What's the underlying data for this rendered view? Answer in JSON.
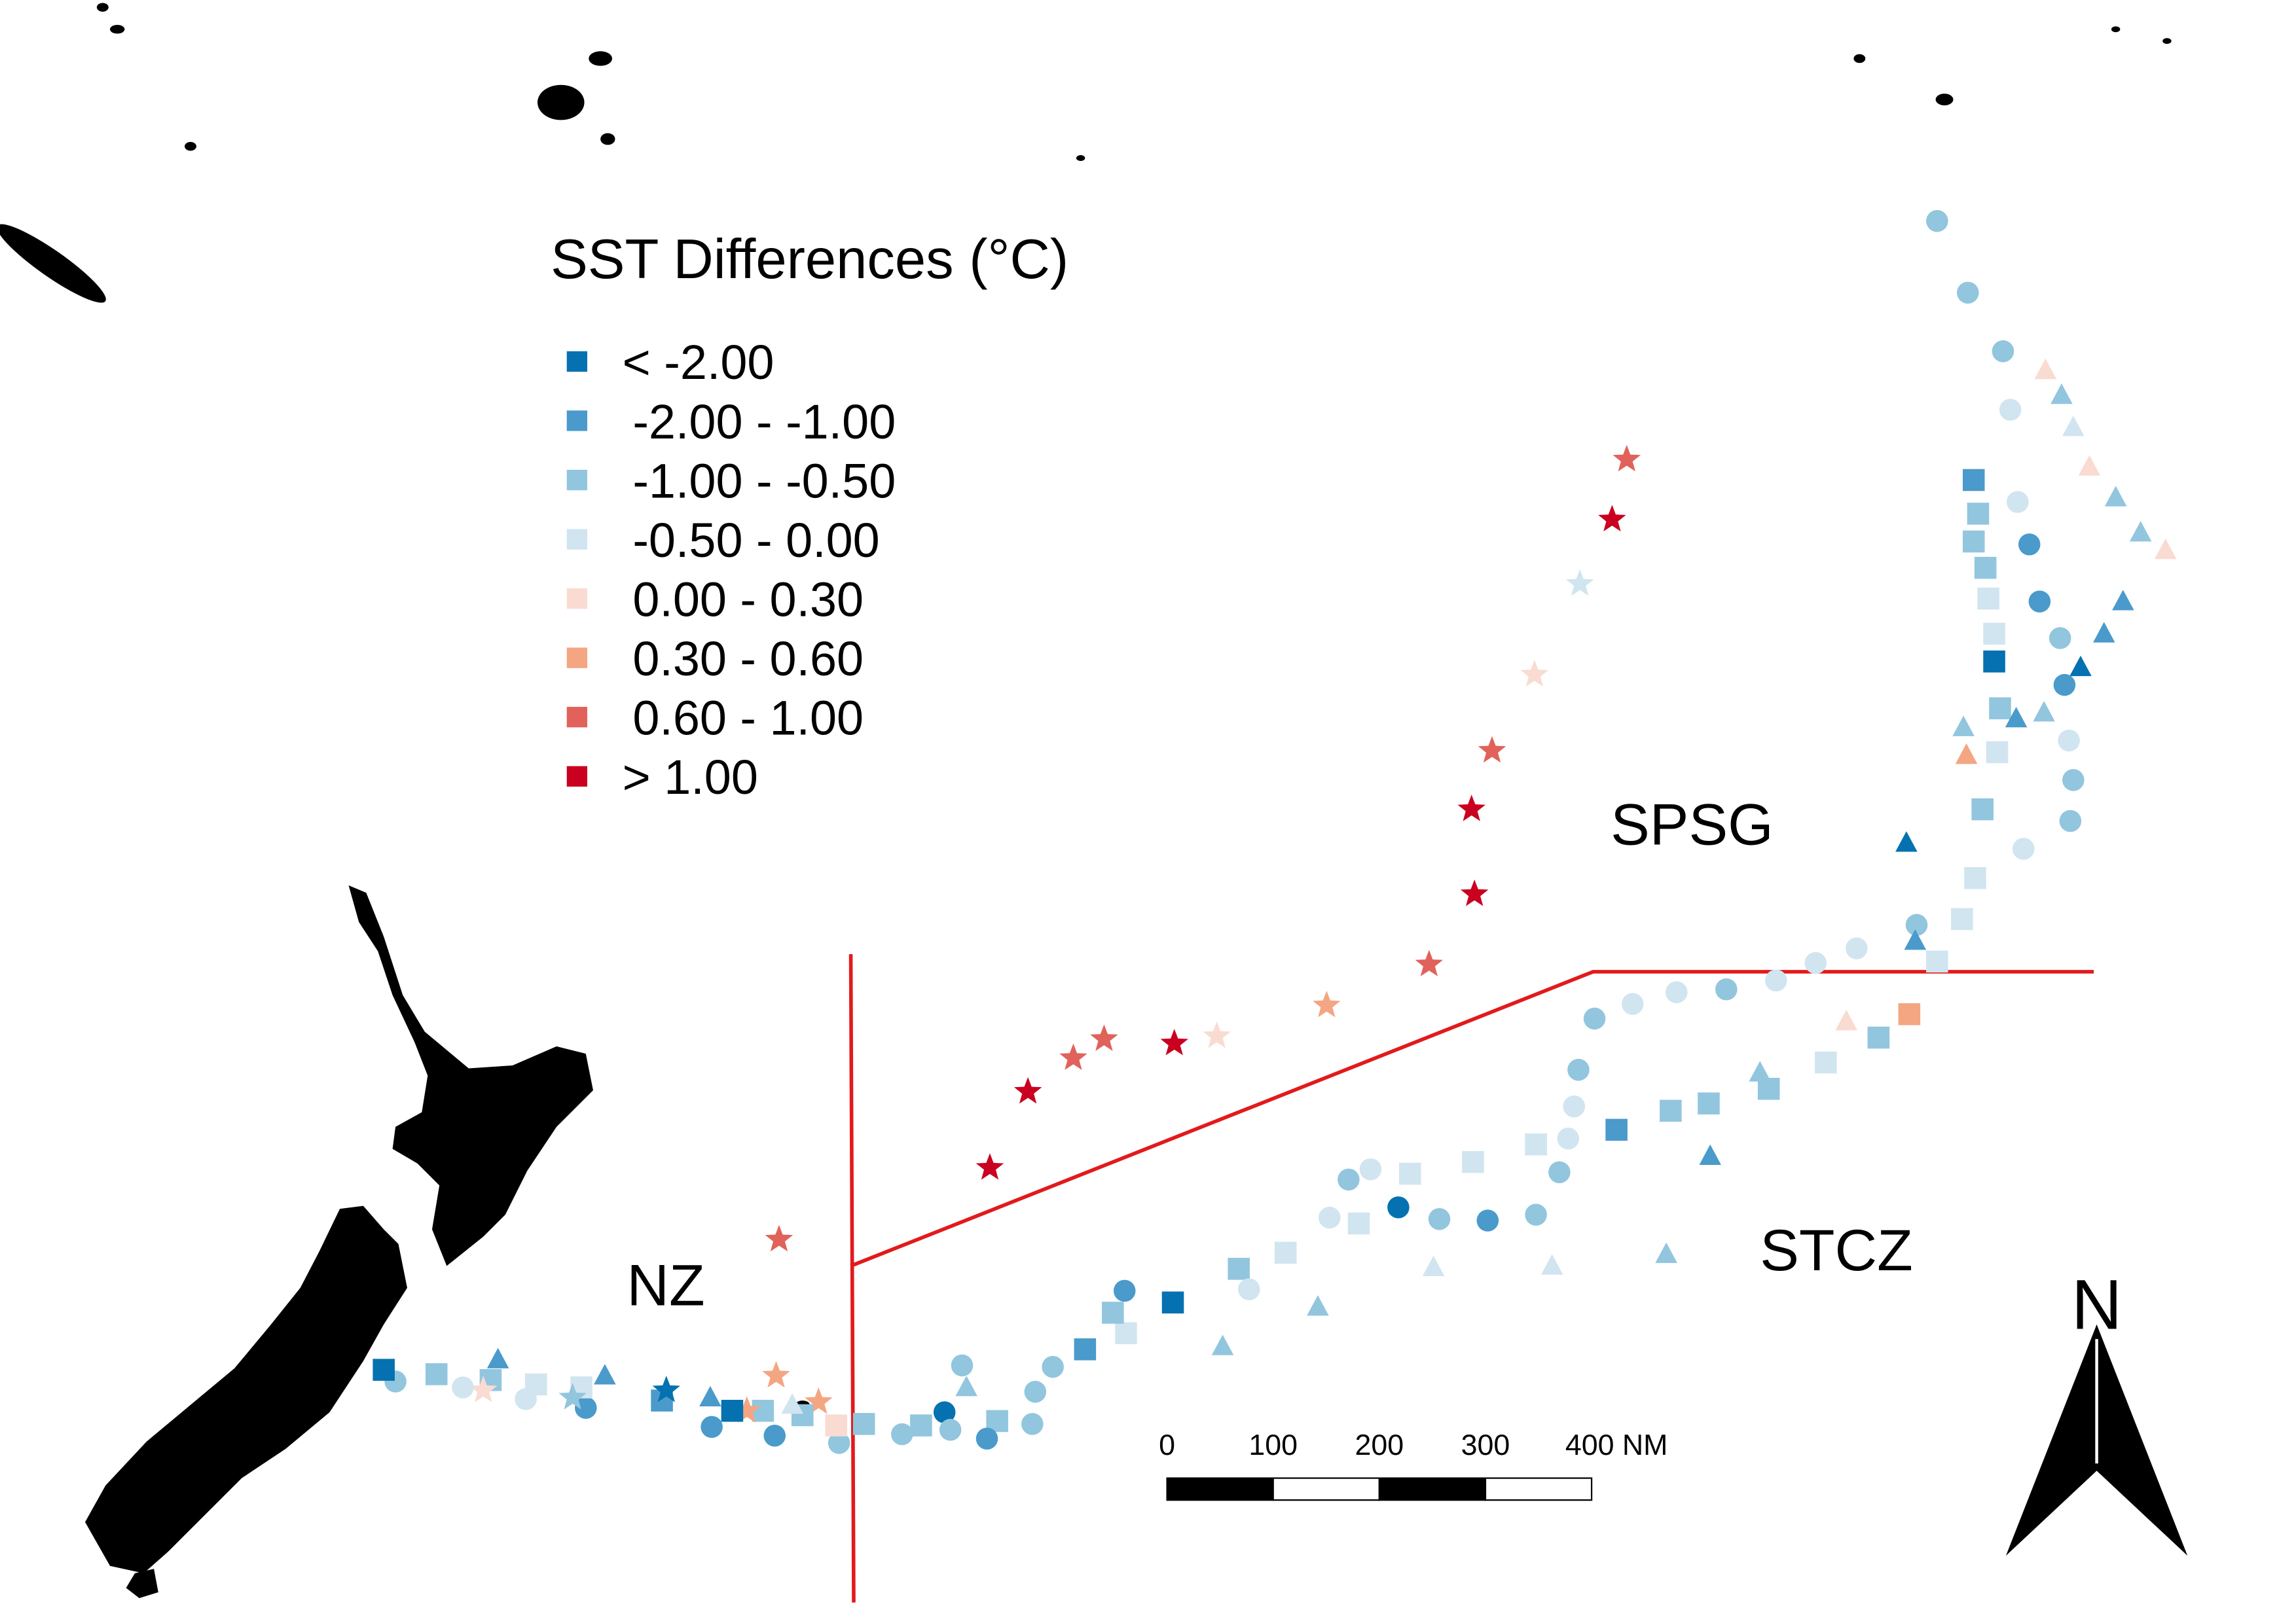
{
  "map": {
    "legend": {
      "title": "SST Differences (°C)",
      "items": [
        {
          "label": "< -2.00",
          "color": "#0571b0"
        },
        {
          "label": "-2.00 - -1.00",
          "color": "#4a9bcb"
        },
        {
          "label": "-1.00 - -0.50",
          "color": "#92c5de"
        },
        {
          "label": "-0.50 - 0.00",
          "color": "#d1e5f0"
        },
        {
          "label": "0.00 - 0.30",
          "color": "#fadbd2"
        },
        {
          "label": "0.30 - 0.60",
          "color": "#f4a582"
        },
        {
          "label": "0.60 - 1.00",
          "color": "#e0625a"
        },
        {
          "label": "> 1.00",
          "color": "#ca0020"
        }
      ]
    },
    "regions": [
      "NZ",
      "SPSG",
      "STCZ"
    ],
    "scale_bar": {
      "labels": [
        "0",
        "100",
        "200",
        "300",
        "400 NM"
      ]
    },
    "north_arrow": "N",
    "boundary_color": "#e31a1c",
    "land_color": "#000000"
  }
}
